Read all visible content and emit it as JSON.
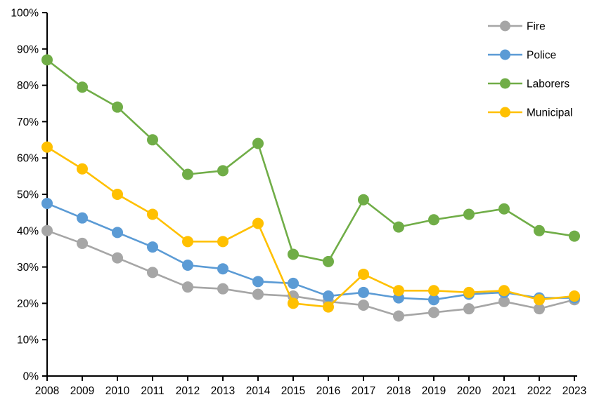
{
  "chart_data": {
    "type": "line",
    "title": "",
    "xlabel": "",
    "ylabel": "",
    "grid": false,
    "legend_position": "top-right",
    "axis_color": "#000000",
    "text_color": "#000000",
    "ylim": [
      0,
      100
    ],
    "y_tick_step": 10,
    "y_tick_labels": [
      "0%",
      "10%",
      "20%",
      "30%",
      "40%",
      "50%",
      "60%",
      "70%",
      "80%",
      "90%",
      "100%"
    ],
    "categories": [
      "2008",
      "2009",
      "2010",
      "2011",
      "2012",
      "2013",
      "2014",
      "2015",
      "2016",
      "2017",
      "2018",
      "2019",
      "2020",
      "2021",
      "2022",
      "2023"
    ],
    "series": [
      {
        "name": "Fire",
        "color": "#a6a6a6",
        "values": [
          40,
          36.5,
          32.5,
          28.5,
          24.5,
          24,
          22.5,
          22,
          20.5,
          19.5,
          16.5,
          17.5,
          18.5,
          20.5,
          18.5,
          21
        ]
      },
      {
        "name": "Police",
        "color": "#5b9bd5",
        "values": [
          47.5,
          43.5,
          39.5,
          35.5,
          30.5,
          29.5,
          26,
          25.5,
          22,
          23,
          21.5,
          21,
          22.5,
          23,
          21.5,
          21.5
        ]
      },
      {
        "name": "Laborers",
        "color": "#70ad47",
        "values": [
          87,
          79.5,
          74,
          65,
          55.5,
          56.5,
          64,
          33.5,
          31.5,
          48.5,
          41,
          43,
          44.5,
          46,
          40,
          38.5
        ]
      },
      {
        "name": "Municipal",
        "color": "#ffc000",
        "values": [
          63,
          57,
          50,
          44.5,
          37,
          37,
          42,
          20,
          19,
          28,
          23.5,
          23.5,
          23,
          23.5,
          21,
          22
        ]
      }
    ],
    "legend": {
      "items": [
        "Fire",
        "Police",
        "Laborers",
        "Municipal"
      ]
    }
  }
}
